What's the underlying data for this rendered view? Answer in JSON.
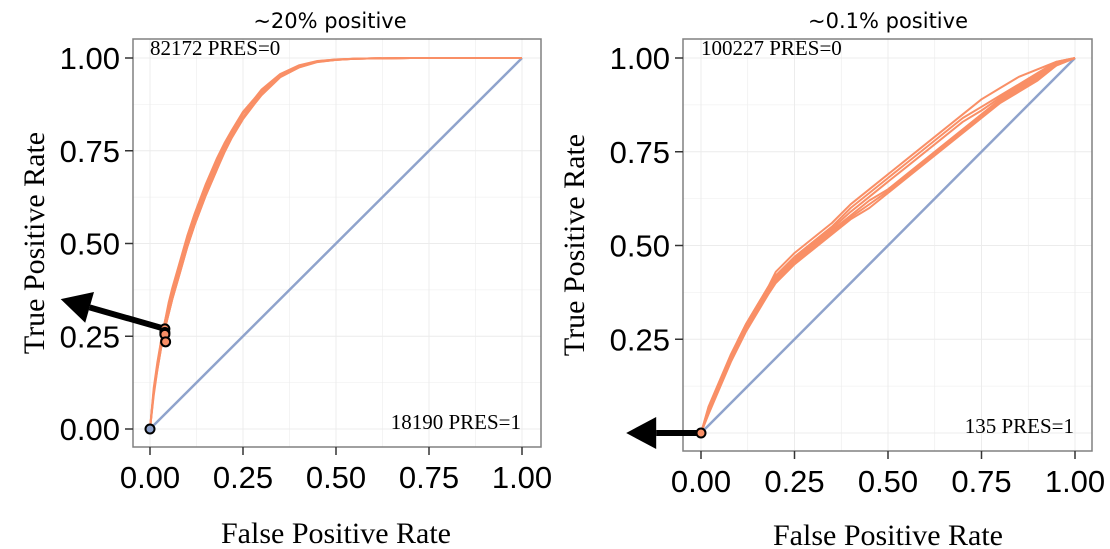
{
  "chart_data": [
    {
      "type": "line",
      "title": "~20% positive",
      "xlabel": "False Positive Rate",
      "ylabel": "True Positive Rate",
      "xlim": [
        0,
        1
      ],
      "ylim": [
        0,
        1
      ],
      "x_ticks": [
        "0.00",
        "0.25",
        "0.50",
        "0.75",
        "1.00"
      ],
      "y_ticks": [
        "0.00",
        "0.25",
        "0.50",
        "0.75",
        "1.00"
      ],
      "grid": true,
      "annotations": {
        "top_left": "82172 PRES=0",
        "bottom_right": "18190 PRES=1"
      },
      "colors": {
        "roc": "#f98f66",
        "diagonal": "#8fa3cc",
        "frame": "#808080",
        "grid": "#ececec"
      },
      "diagonal": {
        "x": [
          0,
          1
        ],
        "y": [
          0,
          1
        ]
      },
      "roc_x": [
        0,
        0.01,
        0.02,
        0.03,
        0.04,
        0.05,
        0.06,
        0.08,
        0.1,
        0.12,
        0.15,
        0.18,
        0.2,
        0.22,
        0.25,
        0.28,
        0.3,
        0.35,
        0.4,
        0.45,
        0.5,
        0.55,
        0.6,
        0.7,
        0.8,
        0.9,
        1.0
      ],
      "roc_series": [
        {
          "y": [
            0,
            0.1,
            0.17,
            0.23,
            0.28,
            0.32,
            0.36,
            0.43,
            0.5,
            0.56,
            0.64,
            0.71,
            0.755,
            0.79,
            0.84,
            0.88,
            0.905,
            0.95,
            0.975,
            0.99,
            0.995,
            0.998,
            0.999,
            1,
            1,
            1,
            1
          ]
        },
        {
          "y": [
            0,
            0.1,
            0.17,
            0.24,
            0.29,
            0.33,
            0.37,
            0.44,
            0.51,
            0.57,
            0.65,
            0.72,
            0.765,
            0.8,
            0.85,
            0.885,
            0.91,
            0.955,
            0.978,
            0.991,
            0.996,
            0.998,
            0.999,
            1,
            1,
            1,
            1
          ]
        },
        {
          "y": [
            0,
            0.1,
            0.16,
            0.22,
            0.27,
            0.31,
            0.35,
            0.42,
            0.49,
            0.55,
            0.63,
            0.7,
            0.745,
            0.785,
            0.835,
            0.875,
            0.9,
            0.948,
            0.974,
            0.989,
            0.995,
            0.998,
            0.999,
            1,
            1,
            1,
            1
          ]
        },
        {
          "y": [
            0,
            0.11,
            0.18,
            0.24,
            0.29,
            0.34,
            0.38,
            0.45,
            0.52,
            0.58,
            0.66,
            0.73,
            0.77,
            0.805,
            0.855,
            0.89,
            0.915,
            0.957,
            0.98,
            0.992,
            0.996,
            0.998,
            0.999,
            1,
            1,
            1,
            1
          ]
        },
        {
          "y": [
            0,
            0.09,
            0.16,
            0.22,
            0.27,
            0.31,
            0.35,
            0.42,
            0.49,
            0.55,
            0.63,
            0.7,
            0.75,
            0.79,
            0.84,
            0.88,
            0.905,
            0.952,
            0.976,
            0.99,
            0.995,
            0.998,
            0.999,
            1,
            1,
            1,
            1
          ]
        }
      ],
      "points": [
        {
          "x": 0.04,
          "y": 0.27,
          "color": "#f98f66"
        },
        {
          "x": 0.04,
          "y": 0.26,
          "color": "#f98f66"
        },
        {
          "x": 0.04,
          "y": 0.255,
          "color": "#f98f66"
        },
        {
          "x": 0.042,
          "y": 0.235,
          "color": "#f98f66"
        },
        {
          "x": 0,
          "y": 0,
          "color": "#8fa3cc"
        }
      ],
      "arrow": {
        "from": [
          0.04,
          0.27
        ],
        "to": [
          -0.24,
          0.35
        ]
      }
    },
    {
      "type": "line",
      "title": "~0.1% positive",
      "xlabel": "False Positive Rate",
      "ylabel": "True Positive Rate",
      "xlim": [
        0,
        1
      ],
      "ylim": [
        0,
        1
      ],
      "x_ticks": [
        "0.00",
        "0.25",
        "0.50",
        "0.75",
        "1.00"
      ],
      "y_ticks": [
        "",
        "0.25",
        "0.50",
        "0.75",
        "1.00"
      ],
      "grid": true,
      "annotations": {
        "top_left": "100227 PRES=0",
        "bottom_right": "135 PRES=1"
      },
      "colors": {
        "roc": "#f98f66",
        "diagonal": "#8fa3cc",
        "frame": "#808080",
        "grid": "#ececec"
      },
      "diagonal": {
        "x": [
          0,
          1
        ],
        "y": [
          0,
          1
        ]
      },
      "roc_x": [
        0,
        0.02,
        0.05,
        0.08,
        0.1,
        0.12,
        0.15,
        0.18,
        0.2,
        0.25,
        0.3,
        0.35,
        0.4,
        0.45,
        0.5,
        0.55,
        0.6,
        0.65,
        0.7,
        0.75,
        0.8,
        0.85,
        0.9,
        0.95,
        1.0
      ],
      "roc_series": [
        {
          "y": [
            0,
            0.06,
            0.13,
            0.2,
            0.24,
            0.28,
            0.33,
            0.38,
            0.41,
            0.46,
            0.5,
            0.54,
            0.58,
            0.62,
            0.65,
            0.69,
            0.73,
            0.77,
            0.81,
            0.85,
            0.89,
            0.92,
            0.95,
            0.98,
            1
          ]
        },
        {
          "y": [
            0,
            0.07,
            0.14,
            0.21,
            0.25,
            0.29,
            0.34,
            0.39,
            0.42,
            0.47,
            0.51,
            0.55,
            0.6,
            0.64,
            0.68,
            0.72,
            0.76,
            0.8,
            0.84,
            0.87,
            0.9,
            0.93,
            0.96,
            0.99,
            1
          ]
        },
        {
          "y": [
            0,
            0.05,
            0.12,
            0.19,
            0.23,
            0.27,
            0.32,
            0.37,
            0.4,
            0.45,
            0.49,
            0.53,
            0.57,
            0.6,
            0.64,
            0.68,
            0.72,
            0.76,
            0.8,
            0.84,
            0.88,
            0.91,
            0.94,
            0.98,
            1
          ]
        },
        {
          "y": [
            0,
            0.06,
            0.13,
            0.2,
            0.25,
            0.29,
            0.34,
            0.39,
            0.43,
            0.48,
            0.52,
            0.56,
            0.61,
            0.65,
            0.69,
            0.73,
            0.77,
            0.81,
            0.85,
            0.89,
            0.92,
            0.95,
            0.97,
            0.99,
            1
          ]
        },
        {
          "y": [
            0,
            0.055,
            0.125,
            0.195,
            0.235,
            0.275,
            0.325,
            0.375,
            0.405,
            0.455,
            0.495,
            0.535,
            0.575,
            0.61,
            0.645,
            0.685,
            0.725,
            0.765,
            0.805,
            0.845,
            0.885,
            0.915,
            0.945,
            0.98,
            1
          ]
        },
        {
          "y": [
            0,
            0.065,
            0.135,
            0.205,
            0.245,
            0.285,
            0.335,
            0.385,
            0.415,
            0.465,
            0.505,
            0.545,
            0.59,
            0.63,
            0.67,
            0.71,
            0.75,
            0.79,
            0.83,
            0.86,
            0.895,
            0.925,
            0.955,
            0.985,
            1
          ]
        }
      ],
      "points": [
        {
          "x": 0,
          "y": 0,
          "color": "#f98f66"
        }
      ],
      "arrow": {
        "from": [
          0,
          0
        ],
        "to": [
          -0.2,
          0
        ]
      }
    }
  ]
}
